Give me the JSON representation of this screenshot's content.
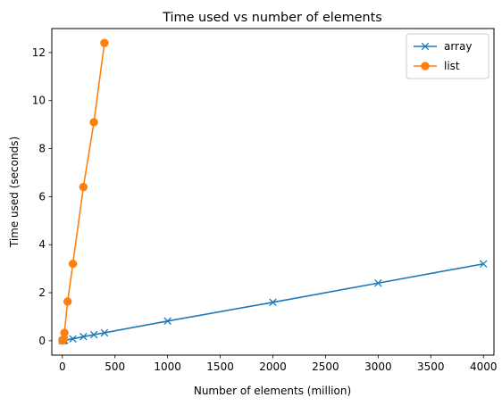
{
  "chart_data": {
    "type": "line",
    "title": "Time used vs number of elements",
    "xlabel": "Number of elements (million)",
    "ylabel": "Time used (seconds)",
    "xlim": [
      -100,
      4100
    ],
    "ylim": [
      -0.6,
      13.0
    ],
    "xticks": [
      0,
      500,
      1000,
      1500,
      2000,
      2500,
      3000,
      3500,
      4000
    ],
    "yticks": [
      0,
      2,
      4,
      6,
      8,
      10,
      12
    ],
    "grid": false,
    "legend_position": "top-right",
    "series": [
      {
        "name": "array",
        "color": "#1f77b4",
        "marker": "x",
        "x": [
          1,
          10,
          20,
          100,
          200,
          300,
          400,
          1000,
          2000,
          3000,
          4000
        ],
        "y": [
          0.0,
          0.01,
          0.02,
          0.08,
          0.17,
          0.25,
          0.33,
          0.82,
          1.6,
          2.4,
          3.2
        ]
      },
      {
        "name": "list",
        "color": "#ff7f0e",
        "marker": "o",
        "x": [
          1,
          10,
          20,
          50,
          100,
          200,
          300,
          400
        ],
        "y": [
          0.01,
          0.05,
          0.33,
          1.63,
          3.2,
          6.4,
          9.1,
          12.4
        ]
      }
    ]
  }
}
